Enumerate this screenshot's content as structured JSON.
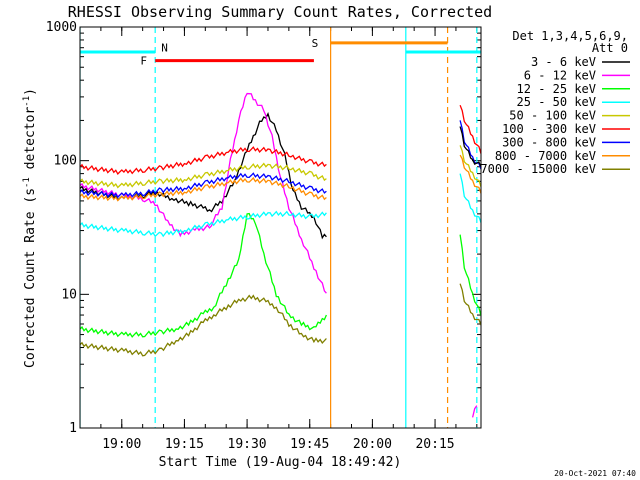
{
  "chart_data": {
    "type": "line",
    "title": "RHESSI Observing Summary Count Rates, Corrected",
    "xlabel": "Start Time (19-Aug-04 18:49:42)",
    "ylabel": "Corrected Count Rate (s",
    "ylabel_sup1": "-1",
    "ylabel_mid": " detector",
    "ylabel_sup2": "-1",
    "ylabel_end": ")",
    "y_scale": "log",
    "ylim": [
      1,
      1000
    ],
    "y_ticks": [
      {
        "value": 1,
        "label": "1"
      },
      {
        "value": 10,
        "label": "10"
      },
      {
        "value": 100,
        "label": "100"
      },
      {
        "value": 1000,
        "label": "1000"
      }
    ],
    "xlim": [
      "18:50",
      "20:26"
    ],
    "x_ticks": [
      {
        "value": "19:00",
        "label": "19:00"
      },
      {
        "value": "19:15",
        "label": "19:15"
      },
      {
        "value": "19:30",
        "label": "19:30"
      },
      {
        "value": "19:45",
        "label": "19:45"
      },
      {
        "value": "20:00",
        "label": "20:00"
      },
      {
        "value": "20:15",
        "label": "20:15"
      }
    ],
    "legend_header": [
      "Det 1,3,4,5,6,9,",
      "Att 0"
    ],
    "legend_position": "right",
    "footer": "20-Oct-2021 07:40",
    "series": [
      {
        "name": "3 - 6 keV",
        "color": "#000000",
        "x": [
          "18:50",
          "19:00",
          "19:05",
          "19:08",
          "19:12",
          "19:16",
          "19:19",
          "19:21",
          "19:24",
          "19:27",
          "19:30",
          "19:33",
          "19:35",
          "19:37",
          "19:39",
          "19:41",
          "19:43",
          "19:46",
          "19:48",
          "19:49"
        ],
        "y": [
          62,
          52,
          55,
          58,
          52,
          48,
          45,
          42,
          50,
          70,
          120,
          190,
          220,
          170,
          110,
          60,
          45,
          38,
          27,
          28
        ]
      },
      {
        "name": "6 - 12 keV",
        "color": "#ff00ff",
        "x": [
          "18:50",
          "19:00",
          "19:05",
          "19:08",
          "19:11",
          "19:14",
          "19:17",
          "19:21",
          "19:24",
          "19:26",
          "19:28",
          "19:30",
          "19:32",
          "19:34",
          "19:36",
          "19:38",
          "19:40",
          "19:43",
          "19:46",
          "19:49"
        ],
        "y": [
          65,
          55,
          52,
          48,
          35,
          28,
          30,
          32,
          45,
          100,
          200,
          330,
          280,
          240,
          150,
          75,
          45,
          26,
          16,
          10
        ]
      },
      {
        "name": "12 - 25 keV",
        "color": "#00ff00",
        "x": [
          "18:50",
          "19:00",
          "19:05",
          "19:09",
          "19:13",
          "19:16",
          "19:19",
          "19:22",
          "19:25",
          "19:28",
          "19:30",
          "19:32",
          "19:34",
          "19:37",
          "19:40",
          "19:43",
          "19:46",
          "19:49"
        ],
        "y": [
          5.5,
          5,
          5,
          5.2,
          5.5,
          6,
          7,
          8,
          12,
          18,
          40,
          35,
          20,
          10,
          7,
          6,
          5.5,
          7
        ]
      },
      {
        "name": "25 - 50 keV",
        "color": "#00ffff",
        "x": [
          "18:50",
          "19:00",
          "19:05",
          "19:09",
          "19:15",
          "19:20",
          "19:25",
          "19:30",
          "19:35",
          "19:40",
          "19:45",
          "19:49"
        ],
        "y": [
          33,
          30,
          29,
          28,
          30,
          33,
          36,
          38,
          40,
          40,
          38,
          40
        ]
      },
      {
        "name": "50 - 100 keV",
        "color": "#c8c800",
        "x": [
          "18:50",
          "19:00",
          "19:05",
          "19:09",
          "19:15",
          "19:20",
          "19:25",
          "19:30",
          "19:35",
          "19:40",
          "19:45",
          "19:49"
        ],
        "y": [
          70,
          65,
          68,
          70,
          72,
          78,
          84,
          90,
          92,
          88,
          80,
          72
        ]
      },
      {
        "name": "100 - 300 keV",
        "color": "#ff0000",
        "x": [
          "18:50",
          "19:00",
          "19:05",
          "19:09",
          "19:15",
          "19:20",
          "19:25",
          "19:30",
          "19:35",
          "19:40",
          "19:45",
          "19:49"
        ],
        "y": [
          90,
          82,
          85,
          88,
          95,
          105,
          115,
          122,
          120,
          110,
          98,
          92
        ]
      },
      {
        "name": "300 - 800 keV",
        "color": "#0000ff",
        "x": [
          "18:50",
          "19:00",
          "19:05",
          "19:09",
          "19:15",
          "19:20",
          "19:25",
          "19:30",
          "19:35",
          "19:40",
          "19:45",
          "19:49"
        ],
        "y": [
          58,
          55,
          57,
          60,
          62,
          68,
          74,
          78,
          76,
          70,
          62,
          58
        ]
      },
      {
        "name": "800 - 7000 keV",
        "color": "#ff8c00",
        "x": [
          "18:50",
          "19:00",
          "19:05",
          "19:09",
          "19:15",
          "19:20",
          "19:25",
          "19:30",
          "19:35",
          "19:40",
          "19:45",
          "19:49"
        ],
        "y": [
          54,
          52,
          54,
          56,
          58,
          63,
          68,
          72,
          70,
          64,
          56,
          52
        ]
      },
      {
        "name": "7000 - 15000 keV",
        "color": "#808000",
        "x": [
          "18:50",
          "19:00",
          "19:05",
          "19:09",
          "19:13",
          "19:16",
          "19:19",
          "19:22",
          "19:25",
          "19:28",
          "19:31",
          "19:34",
          "19:37",
          "19:40",
          "19:43",
          "19:46",
          "19:49"
        ],
        "y": [
          4.2,
          3.8,
          3.6,
          3.8,
          4.5,
          5,
          6,
          7,
          8,
          9,
          9.5,
          9,
          8,
          6,
          5,
          4.5,
          4.5
        ]
      }
    ],
    "series_post": [
      {
        "color": "#ff0000",
        "x": [
          "20:21",
          "20:22",
          "20:24",
          "20:26"
        ],
        "y": [
          260,
          200,
          150,
          115
        ]
      },
      {
        "color": "#0000ff",
        "x": [
          "20:21",
          "20:22",
          "20:24",
          "20:26"
        ],
        "y": [
          200,
          140,
          105,
          88
        ]
      },
      {
        "color": "#000000",
        "x": [
          "20:21",
          "20:22",
          "20:24",
          "20:26"
        ],
        "y": [
          180,
          130,
          100,
          92
        ]
      },
      {
        "color": "#c8c800",
        "x": [
          "20:21",
          "20:22",
          "20:24",
          "20:26"
        ],
        "y": [
          130,
          100,
          80,
          65
        ]
      },
      {
        "color": "#ff8c00",
        "x": [
          "20:21",
          "20:22",
          "20:24",
          "20:26"
        ],
        "y": [
          110,
          90,
          70,
          58
        ]
      },
      {
        "color": "#00ffff",
        "x": [
          "20:21",
          "20:22",
          "20:24",
          "20:26"
        ],
        "y": [
          80,
          55,
          42,
          35
        ]
      },
      {
        "color": "#00ff00",
        "x": [
          "20:21",
          "20:22",
          "20:24",
          "20:26"
        ],
        "y": [
          28,
          16,
          10,
          7
        ]
      },
      {
        "color": "#808000",
        "x": [
          "20:21",
          "20:22",
          "20:24",
          "20:26"
        ],
        "y": [
          12,
          9,
          7,
          6
        ]
      },
      {
        "color": "#ff00ff",
        "x": [
          "20:24",
          "20:25"
        ],
        "y": [
          1.2,
          1.5
        ]
      }
    ],
    "markers": [
      {
        "label": "N",
        "color": "#00ffff",
        "text_color": "#00aaff",
        "x_start": "18:50",
        "x_end": "19:08",
        "y": 650,
        "label_x": "19:08",
        "label_y": 700
      },
      {
        "label": "F",
        "color": "#ff0000",
        "text_color": "#ff0000",
        "x_start": "19:08",
        "x_end": "19:46",
        "y": 560,
        "label_x": "19:07",
        "label_y": 560
      },
      {
        "label": "S",
        "color": "#ff8c00",
        "text_color": "#ff8c00",
        "x_start": "19:50",
        "x_end": "20:18",
        "y": 760,
        "label_x": "19:48",
        "label_y": 760
      },
      {
        "label": "",
        "color": "#00ffff",
        "text_color": "#00ffff",
        "x_start": "20:08",
        "x_end": "20:26",
        "y": 650,
        "label_x": "20:08",
        "label_y": 650
      }
    ],
    "vlines": [
      {
        "x": "18:50",
        "color": "#00ffff",
        "style": "solid"
      },
      {
        "x": "19:08",
        "color": "#00ffff",
        "style": "dashed"
      },
      {
        "x": "19:50",
        "color": "#ff8c00",
        "style": "solid"
      },
      {
        "x": "20:08",
        "color": "#00ffff",
        "style": "solid"
      },
      {
        "x": "20:18",
        "color": "#ff8c00",
        "style": "dashed"
      },
      {
        "x": "20:25",
        "color": "#00ffff",
        "style": "dashed"
      }
    ]
  }
}
